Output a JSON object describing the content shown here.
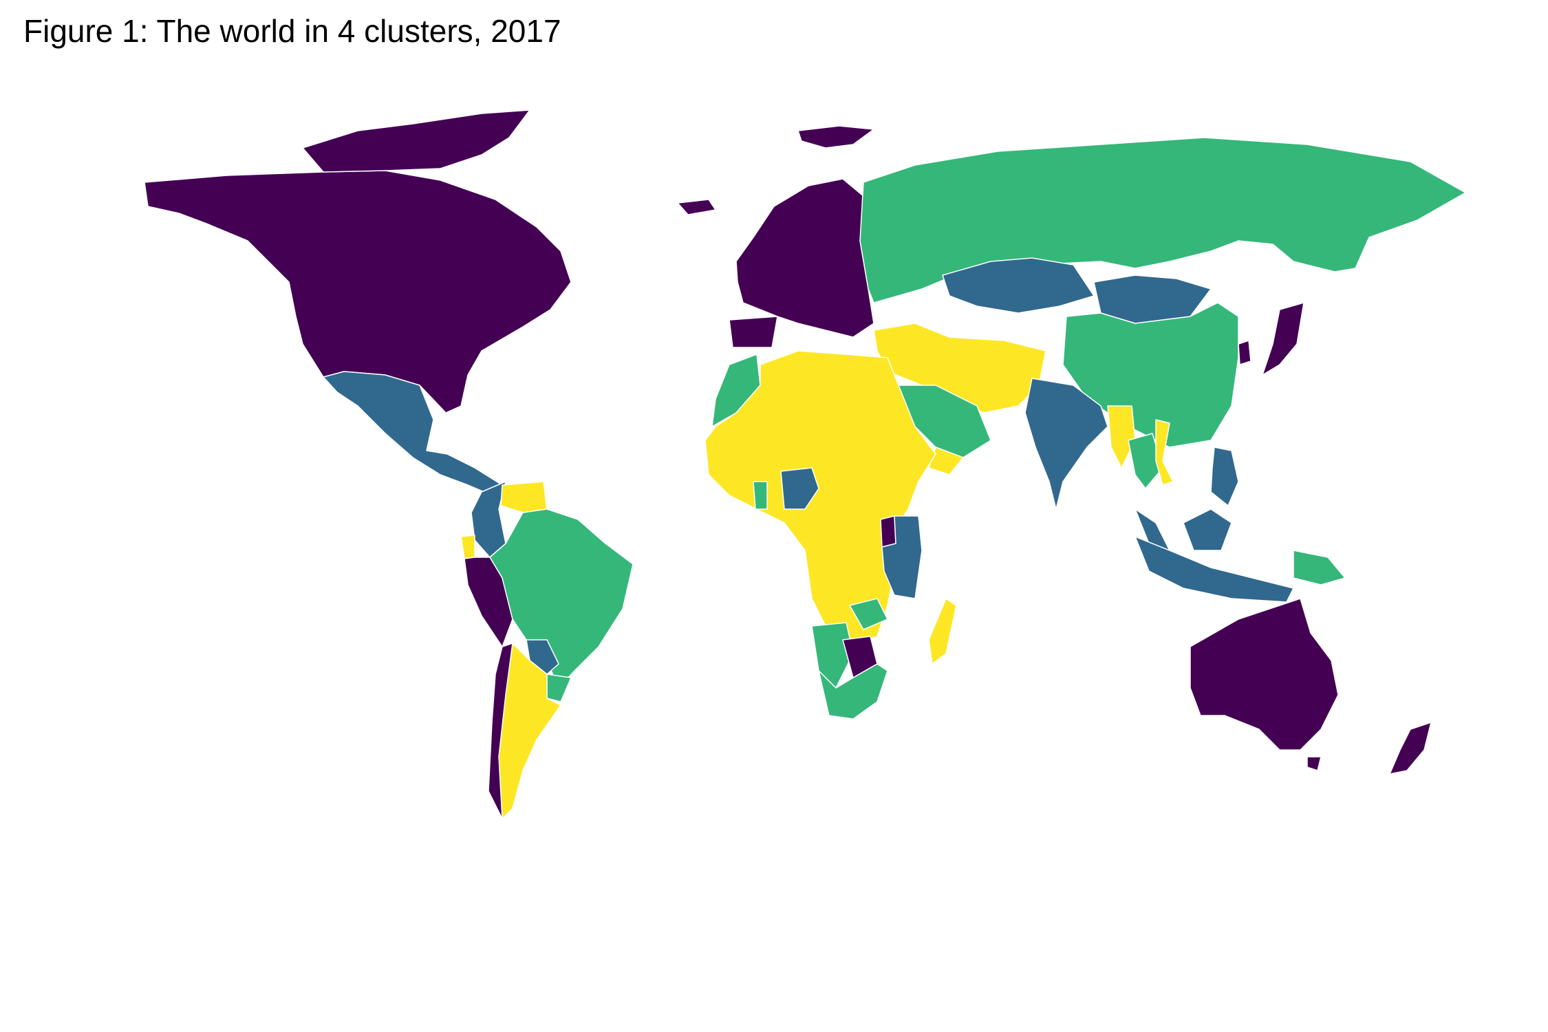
{
  "title": "Figure 1: The world in 4 clusters, 2017",
  "palette": {
    "cluster_1": "#440154",
    "cluster_2": "#31688e",
    "cluster_3": "#35b779",
    "cluster_4": "#fde725"
  },
  "regions": [
    {
      "name": "North America",
      "cluster": "cluster_1"
    },
    {
      "name": "Greenland",
      "cluster": "cluster_1"
    },
    {
      "name": "Mexico and Central America",
      "cluster": "cluster_2"
    },
    {
      "name": "Colombia",
      "cluster": "cluster_2"
    },
    {
      "name": "Venezuela",
      "cluster": "cluster_4"
    },
    {
      "name": "Ecuador",
      "cluster": "cluster_4"
    },
    {
      "name": "Peru",
      "cluster": "cluster_1"
    },
    {
      "name": "Brazil",
      "cluster": "cluster_3"
    },
    {
      "name": "Paraguay",
      "cluster": "cluster_2"
    },
    {
      "name": "Uruguay",
      "cluster": "cluster_3"
    },
    {
      "name": "Chile",
      "cluster": "cluster_1"
    },
    {
      "name": "Argentina",
      "cluster": "cluster_4"
    },
    {
      "name": "Europe",
      "cluster": "cluster_1"
    },
    {
      "name": "Iceland",
      "cluster": "cluster_1"
    },
    {
      "name": "Spain",
      "cluster": "cluster_1"
    },
    {
      "name": "Russia",
      "cluster": "cluster_3"
    },
    {
      "name": "Kazakhstan",
      "cluster": "cluster_2"
    },
    {
      "name": "Mongolia",
      "cluster": "cluster_2"
    },
    {
      "name": "China",
      "cluster": "cluster_3"
    },
    {
      "name": "Middle East",
      "cluster": "cluster_4"
    },
    {
      "name": "Saudi Arabia",
      "cluster": "cluster_3"
    },
    {
      "name": "India",
      "cluster": "cluster_2"
    },
    {
      "name": "Myanmar",
      "cluster": "cluster_4"
    },
    {
      "name": "Thailand",
      "cluster": "cluster_3"
    },
    {
      "name": "Vietnam",
      "cluster": "cluster_4"
    },
    {
      "name": "Japan",
      "cluster": "cluster_1"
    },
    {
      "name": "Korea",
      "cluster": "cluster_1"
    },
    {
      "name": "Philippines",
      "cluster": "cluster_2"
    },
    {
      "name": "Indonesia",
      "cluster": "cluster_2"
    },
    {
      "name": "Papua New Guinea",
      "cluster": "cluster_3"
    },
    {
      "name": "Australia",
      "cluster": "cluster_1"
    },
    {
      "name": "New Zealand",
      "cluster": "cluster_1"
    },
    {
      "name": "Morocco",
      "cluster": "cluster_3"
    },
    {
      "name": "North and Central Africa",
      "cluster": "cluster_4"
    },
    {
      "name": "Nigeria",
      "cluster": "cluster_2"
    },
    {
      "name": "Ghana",
      "cluster": "cluster_3"
    },
    {
      "name": "Kenya and Tanzania",
      "cluster": "cluster_2"
    },
    {
      "name": "Uganda and Rwanda",
      "cluster": "cluster_1"
    },
    {
      "name": "Zambia",
      "cluster": "cluster_3"
    },
    {
      "name": "Namibia",
      "cluster": "cluster_3"
    },
    {
      "name": "Botswana",
      "cluster": "cluster_1"
    },
    {
      "name": "South Africa",
      "cluster": "cluster_3"
    },
    {
      "name": "Madagascar",
      "cluster": "cluster_4"
    }
  ]
}
